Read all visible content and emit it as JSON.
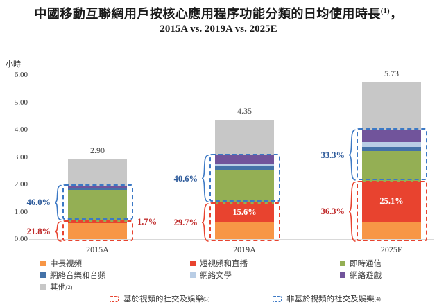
{
  "title": {
    "line1": "中國移動互聯網用戶按核心應用程序功能分類的日均使用時長",
    "line1_sup": "(1)",
    "line1_tail": "，",
    "line2": "2015A vs. 2019A vs. 2025E"
  },
  "y_axis": {
    "unit": "小時",
    "ticks": [
      "6.00",
      "5.00",
      "4.00",
      "3.00",
      "2.00",
      "1.00",
      "0.00"
    ]
  },
  "chart_data": {
    "type": "bar",
    "stacked": true,
    "title": "中國移動互聯網用戶按核心應用程序功能分類的日均使用時長, 2015A vs. 2019A vs. 2025E",
    "ylabel": "小時",
    "ylim": [
      0,
      6
    ],
    "grid": false,
    "categories": [
      "2015A",
      "2019A",
      "2025E"
    ],
    "totals": [
      2.9,
      4.35,
      5.73
    ],
    "total_labels": [
      "2.90",
      "4.35",
      "5.73"
    ],
    "series": [
      {
        "name": "中長視頻",
        "key": "mid_long_video",
        "values": [
          0.58,
          0.61,
          0.64
        ]
      },
      {
        "name": "短視頻和直播",
        "key": "short_video_live",
        "values": [
          0.05,
          0.68,
          1.44
        ]
      },
      {
        "name": "即時通信",
        "key": "instant_messaging",
        "values": [
          1.16,
          1.25,
          1.13
        ]
      },
      {
        "name": "網絡音樂和音頻",
        "key": "online_music_audio",
        "values": [
          0.06,
          0.11,
          0.15
        ]
      },
      {
        "name": "網絡文學",
        "key": "online_literature",
        "values": [
          0.03,
          0.11,
          0.19
        ]
      },
      {
        "name": "網絡遊戲",
        "key": "online_games",
        "values": [
          0.08,
          0.3,
          0.44
        ]
      },
      {
        "name": "其他",
        "key": "others",
        "values": [
          0.94,
          1.29,
          1.74
        ]
      }
    ],
    "annotations": {
      "video_based_pct": [
        "21.8%",
        "29.7%",
        "36.3%"
      ],
      "non_video_based_pct": [
        "46.0%",
        "40.6%",
        "33.3%"
      ],
      "short_video_pct": [
        "1.7%",
        "15.6%",
        "25.1%"
      ]
    }
  },
  "legend": {
    "items": [
      {
        "label": "中長視頻",
        "sup": "",
        "key": "mid_long_video"
      },
      {
        "label": "短視頻和直播",
        "sup": "",
        "key": "short_video_live"
      },
      {
        "label": "即時通信",
        "sup": "",
        "key": "instant_messaging"
      },
      {
        "label": "網絡音樂和音頻",
        "sup": "",
        "key": "online_music_audio"
      },
      {
        "label": "網絡文學",
        "sup": "",
        "key": "online_literature"
      },
      {
        "label": "網絡遊戲",
        "sup": "",
        "key": "online_games"
      },
      {
        "label": "其他",
        "sup": "(2)",
        "key": "others"
      }
    ]
  },
  "footnote_legend": {
    "video_based": {
      "label": "基於視頻的社交及娛樂",
      "sup": "(3)"
    },
    "non_video_based": {
      "label": "非基於視頻的社交及娛樂",
      "sup": "(4)"
    }
  },
  "colors": {
    "series": {
      "mid_long_video": "#F79646",
      "short_video_live": "#E8432F",
      "instant_messaging": "#94AF54",
      "online_music_audio": "#4472A8",
      "online_literature": "#B9CDE5",
      "online_games": "#71549B",
      "others": "#C7C7C7"
    },
    "label_red": "#C02B2B",
    "label_blue": "#2E5B9B",
    "dash_red": "#E8432F",
    "dash_blue": "#3C79C5",
    "axis_line": "#D9D9D9"
  }
}
